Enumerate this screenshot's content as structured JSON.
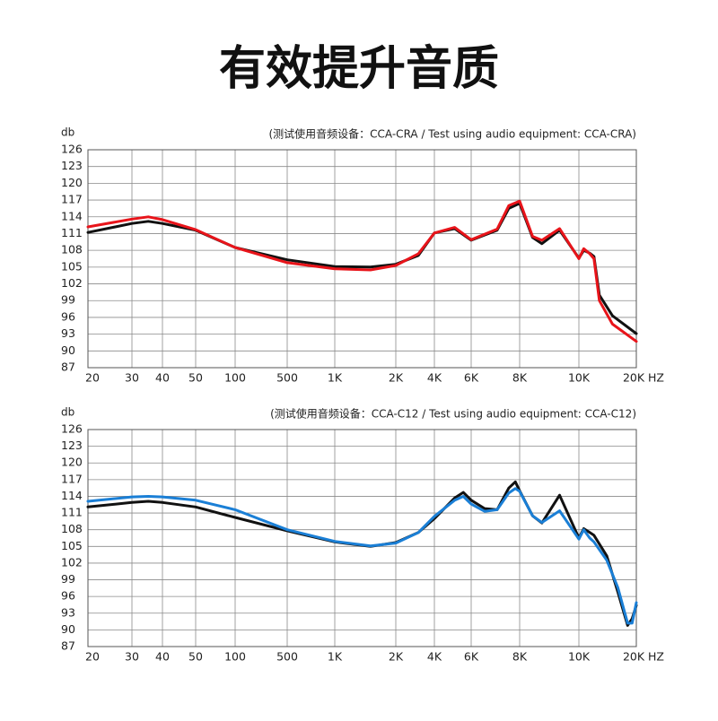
{
  "title": "有效提升音质",
  "chart_data": [
    {
      "type": "line",
      "y_label": "db",
      "x_label": "HZ",
      "note": "(测试使用音频设备：CCA-CRA / Test using audio equipment: CCA-CRA)",
      "xlim": [
        20,
        20000
      ],
      "ylim": [
        87,
        126
      ],
      "xticks": [
        20,
        30,
        40,
        50,
        100,
        500,
        {
          "value": 1000,
          "label": "1K"
        },
        {
          "value": 2000,
          "label": "2K"
        },
        {
          "value": 4000,
          "label": "4K"
        },
        {
          "value": 6000,
          "label": "6K"
        },
        {
          "value": 8000,
          "label": "8K"
        },
        {
          "value": 10000,
          "label": "10K"
        },
        {
          "value": 20000,
          "label": "20K"
        }
      ],
      "yticks": [
        126,
        123,
        120,
        117,
        114,
        111,
        108,
        105,
        102,
        99,
        96,
        93,
        90,
        87
      ],
      "grid": true,
      "x": [
        20,
        30,
        35,
        40,
        50,
        100,
        500,
        1000,
        1500,
        2000,
        3000,
        4000,
        5000,
        6000,
        7000,
        7500,
        8000,
        8400,
        8700,
        9300,
        10000,
        10600,
        11400,
        12000,
        12800,
        15000,
        20000
      ],
      "series": [
        {
          "color": "#111111",
          "values": [
            111.2,
            112.8,
            113.2,
            112.8,
            111.6,
            108.5,
            106.3,
            105.1,
            105.0,
            105.5,
            107.1,
            111.1,
            111.9,
            109.8,
            111.6,
            115.5,
            116.4,
            110.3,
            109.2,
            111.6,
            106.6,
            108.0,
            107.5,
            106.9,
            100.0,
            96.3,
            93.1
          ]
        },
        {
          "color": "#e8141a",
          "values": [
            112.2,
            113.6,
            114.0,
            113.5,
            111.7,
            108.5,
            105.8,
            104.7,
            104.5,
            105.3,
            107.4,
            111.1,
            112.1,
            109.9,
            111.8,
            116.0,
            116.8,
            110.5,
            109.8,
            111.9,
            106.5,
            108.3,
            107.4,
            106.5,
            99.0,
            94.8,
            91.7
          ]
        }
      ]
    },
    {
      "type": "line",
      "y_label": "db",
      "x_label": "HZ",
      "note": "(测试使用音频设备：CCA-C12 / Test using audio equipment: CCA-C12)",
      "xlim": [
        20,
        20000
      ],
      "ylim": [
        87,
        126
      ],
      "xticks": [
        20,
        30,
        40,
        50,
        100,
        500,
        {
          "value": 1000,
          "label": "1K"
        },
        {
          "value": 2000,
          "label": "2K"
        },
        {
          "value": 4000,
          "label": "4K"
        },
        {
          "value": 6000,
          "label": "6K"
        },
        {
          "value": 8000,
          "label": "8K"
        },
        {
          "value": 10000,
          "label": "10K"
        },
        {
          "value": 20000,
          "label": "20K"
        }
      ],
      "yticks": [
        126,
        123,
        120,
        117,
        114,
        111,
        108,
        105,
        102,
        99,
        96,
        93,
        90,
        87
      ],
      "grid": true,
      "x": [
        20,
        30,
        35,
        40,
        50,
        100,
        500,
        1000,
        1500,
        2000,
        3000,
        4000,
        5000,
        5500,
        6000,
        6500,
        7000,
        7500,
        7800,
        8000,
        8400,
        8700,
        9300,
        10000,
        10600,
        11400,
        12000,
        14000,
        16000,
        18000,
        19000,
        20000
      ],
      "series": [
        {
          "color": "#111111",
          "values": [
            112.1,
            112.9,
            113.1,
            112.9,
            112.1,
            110.2,
            107.8,
            105.8,
            105.0,
            105.7,
            107.5,
            110.0,
            113.7,
            114.7,
            113.3,
            111.8,
            111.6,
            115.5,
            116.6,
            115.0,
            110.5,
            109.2,
            114.2,
            106.5,
            108.2,
            107.5,
            107.0,
            103.3,
            96.8,
            90.8,
            92.0,
            94.4
          ]
        },
        {
          "color": "#1a7fd6",
          "values": [
            113.1,
            113.9,
            114.0,
            113.9,
            113.3,
            111.6,
            108.0,
            105.9,
            105.1,
            105.6,
            107.5,
            110.4,
            113.3,
            114.0,
            112.6,
            111.3,
            111.6,
            114.6,
            115.4,
            114.9,
            110.5,
            109.3,
            111.4,
            106.3,
            108.0,
            106.5,
            105.8,
            102.5,
            97.6,
            91.2,
            91.2,
            94.9
          ]
        }
      ]
    }
  ]
}
